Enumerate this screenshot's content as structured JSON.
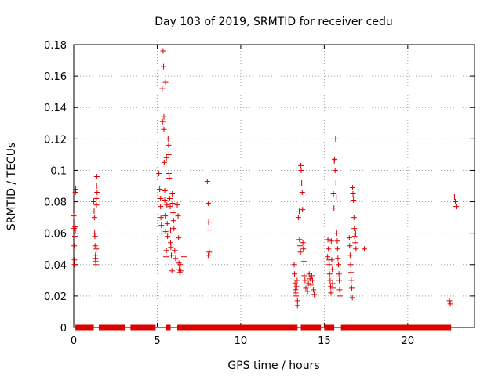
{
  "chart_data": {
    "type": "scatter",
    "title": "Day 103 of 2019, SRMTID for receiver cedu",
    "xlabel": "GPS time / hours",
    "ylabel": "SRMTID / TECUs",
    "xlim": [
      0,
      24
    ],
    "ylim": [
      0,
      0.18
    ],
    "xticks": [
      0,
      5,
      10,
      15,
      20
    ],
    "xtick_labels": [
      "0",
      "5",
      "10",
      "15",
      "20"
    ],
    "yticks": [
      0,
      0.02,
      0.04,
      0.06,
      0.08,
      0.1,
      0.12,
      0.14,
      0.16,
      0.18
    ],
    "ytick_labels": [
      "0",
      "0.02",
      "0.04",
      "0.06",
      "0.08",
      "0.1",
      "0.12",
      "0.14",
      "0.16",
      "0.18"
    ],
    "grid": true,
    "marker": "+",
    "color": "#dd0000",
    "zero_segments": [
      [
        0.1,
        1.2
      ],
      [
        1.5,
        3.1
      ],
      [
        3.4,
        4.9
      ],
      [
        5.5,
        5.8
      ],
      [
        6.2,
        13.4
      ],
      [
        13.6,
        14.8
      ],
      [
        15.0,
        15.6
      ],
      [
        16.0,
        22.6
      ]
    ],
    "series": [
      {
        "name": "SRMTID",
        "points": [
          [
            0.0,
            0.071
          ],
          [
            0.02,
            0.063
          ],
          [
            0.03,
            0.052
          ],
          [
            0.05,
            0.043
          ],
          [
            0.05,
            0.04
          ],
          [
            0.07,
            0.058
          ],
          [
            0.08,
            0.064
          ],
          [
            0.1,
            0.086
          ],
          [
            0.12,
            0.088
          ],
          [
            0.1,
            0.062
          ],
          [
            1.2,
            0.08
          ],
          [
            1.22,
            0.074
          ],
          [
            1.24,
            0.07
          ],
          [
            1.25,
            0.06
          ],
          [
            1.27,
            0.058
          ],
          [
            1.28,
            0.052
          ],
          [
            1.3,
            0.046
          ],
          [
            1.3,
            0.044
          ],
          [
            1.32,
            0.042
          ],
          [
            1.33,
            0.04
          ],
          [
            1.35,
            0.082
          ],
          [
            1.37,
            0.09
          ],
          [
            1.38,
            0.096
          ],
          [
            1.4,
            0.086
          ],
          [
            1.36,
            0.078
          ],
          [
            1.35,
            0.05
          ],
          [
            5.1,
            0.098
          ],
          [
            5.15,
            0.088
          ],
          [
            5.2,
            0.082
          ],
          [
            5.2,
            0.077
          ],
          [
            5.22,
            0.07
          ],
          [
            5.25,
            0.065
          ],
          [
            5.28,
            0.06
          ],
          [
            5.3,
            0.152
          ],
          [
            5.32,
            0.131
          ],
          [
            5.35,
            0.176
          ],
          [
            5.38,
            0.166
          ],
          [
            5.4,
            0.134
          ],
          [
            5.4,
            0.126
          ],
          [
            5.42,
            0.105
          ],
          [
            5.45,
            0.087
          ],
          [
            5.45,
            0.081
          ],
          [
            5.48,
            0.071
          ],
          [
            5.5,
            0.061
          ],
          [
            5.5,
            0.156
          ],
          [
            5.52,
            0.045
          ],
          [
            5.55,
            0.049
          ],
          [
            5.55,
            0.108
          ],
          [
            5.58,
            0.078
          ],
          [
            5.6,
            0.066
          ],
          [
            5.62,
            0.058
          ],
          [
            5.65,
            0.12
          ],
          [
            5.68,
            0.116
          ],
          [
            5.7,
            0.11
          ],
          [
            5.7,
            0.098
          ],
          [
            5.72,
            0.095
          ],
          [
            5.75,
            0.082
          ],
          [
            5.78,
            0.077
          ],
          [
            5.8,
            0.062
          ],
          [
            5.8,
            0.054
          ],
          [
            5.82,
            0.051
          ],
          [
            5.85,
            0.046
          ],
          [
            5.88,
            0.036
          ],
          [
            5.9,
            0.085
          ],
          [
            5.92,
            0.079
          ],
          [
            5.95,
            0.073
          ],
          [
            5.98,
            0.068
          ],
          [
            6.0,
            0.063
          ],
          [
            6.05,
            0.049
          ],
          [
            6.1,
            0.044
          ],
          [
            6.2,
            0.078
          ],
          [
            6.25,
            0.071
          ],
          [
            6.28,
            0.057
          ],
          [
            6.3,
            0.041
          ],
          [
            6.32,
            0.037
          ],
          [
            6.35,
            0.035
          ],
          [
            6.38,
            0.04
          ],
          [
            6.4,
            0.036
          ],
          [
            6.6,
            0.045
          ],
          [
            8.0,
            0.093
          ],
          [
            8.05,
            0.079
          ],
          [
            8.08,
            0.067
          ],
          [
            8.1,
            0.062
          ],
          [
            8.12,
            0.048
          ],
          [
            8.05,
            0.046
          ],
          [
            13.2,
            0.04
          ],
          [
            13.22,
            0.034
          ],
          [
            13.25,
            0.028
          ],
          [
            13.28,
            0.024
          ],
          [
            13.3,
            0.022
          ],
          [
            13.32,
            0.02
          ],
          [
            13.35,
            0.026
          ],
          [
            13.38,
            0.03
          ],
          [
            13.4,
            0.017
          ],
          [
            13.4,
            0.014
          ],
          [
            13.45,
            0.07
          ],
          [
            13.5,
            0.074
          ],
          [
            13.52,
            0.056
          ],
          [
            13.55,
            0.052
          ],
          [
            13.58,
            0.048
          ],
          [
            13.6,
            0.103
          ],
          [
            13.62,
            0.1
          ],
          [
            13.65,
            0.092
          ],
          [
            13.68,
            0.086
          ],
          [
            13.7,
            0.075
          ],
          [
            13.72,
            0.054
          ],
          [
            13.75,
            0.05
          ],
          [
            13.78,
            0.042
          ],
          [
            13.8,
            0.033
          ],
          [
            13.85,
            0.03
          ],
          [
            13.9,
            0.025
          ],
          [
            14.0,
            0.023
          ],
          [
            14.05,
            0.028
          ],
          [
            14.1,
            0.034
          ],
          [
            14.15,
            0.031
          ],
          [
            14.2,
            0.027
          ],
          [
            14.25,
            0.033
          ],
          [
            14.3,
            0.03
          ],
          [
            14.35,
            0.024
          ],
          [
            14.4,
            0.021
          ],
          [
            15.2,
            0.045
          ],
          [
            15.22,
            0.056
          ],
          [
            15.25,
            0.05
          ],
          [
            15.28,
            0.043
          ],
          [
            15.3,
            0.04
          ],
          [
            15.32,
            0.034
          ],
          [
            15.35,
            0.03
          ],
          [
            15.38,
            0.026
          ],
          [
            15.4,
            0.022
          ],
          [
            15.42,
            0.055
          ],
          [
            15.45,
            0.043
          ],
          [
            15.48,
            0.037
          ],
          [
            15.5,
            0.028
          ],
          [
            15.52,
            0.025
          ],
          [
            15.55,
            0.085
          ],
          [
            15.58,
            0.076
          ],
          [
            15.6,
            0.106
          ],
          [
            15.62,
            0.107
          ],
          [
            15.65,
            0.1
          ],
          [
            15.68,
            0.12
          ],
          [
            15.7,
            0.092
          ],
          [
            15.72,
            0.083
          ],
          [
            15.75,
            0.06
          ],
          [
            15.78,
            0.055
          ],
          [
            15.8,
            0.05
          ],
          [
            15.82,
            0.044
          ],
          [
            15.85,
            0.04
          ],
          [
            15.88,
            0.034
          ],
          [
            15.9,
            0.03
          ],
          [
            15.92,
            0.024
          ],
          [
            15.95,
            0.02
          ],
          [
            16.5,
            0.057
          ],
          [
            16.52,
            0.052
          ],
          [
            16.55,
            0.046
          ],
          [
            16.58,
            0.04
          ],
          [
            16.6,
            0.035
          ],
          [
            16.62,
            0.03
          ],
          [
            16.65,
            0.025
          ],
          [
            16.68,
            0.019
          ],
          [
            16.7,
            0.089
          ],
          [
            16.72,
            0.085
          ],
          [
            16.75,
            0.081
          ],
          [
            16.78,
            0.07
          ],
          [
            16.8,
            0.063
          ],
          [
            16.82,
            0.058
          ],
          [
            16.85,
            0.054
          ],
          [
            16.88,
            0.06
          ],
          [
            16.9,
            0.05
          ],
          [
            17.4,
            0.05
          ],
          [
            22.5,
            0.017
          ],
          [
            22.55,
            0.015
          ],
          [
            22.8,
            0.083
          ],
          [
            22.85,
            0.08
          ],
          [
            22.9,
            0.077
          ]
        ]
      }
    ]
  }
}
